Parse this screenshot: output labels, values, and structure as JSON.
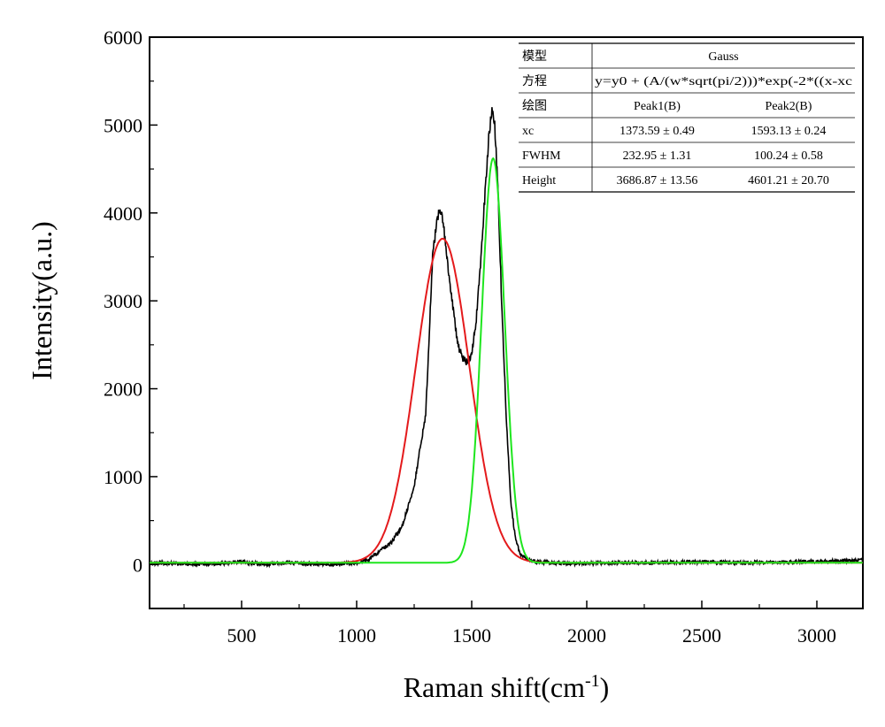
{
  "chart_data": {
    "type": "line",
    "xlabel": "Raman shift(cm",
    "xlabel_sup": "-1",
    "xlabel_end": ")",
    "ylabel": "Intensity(a.u.)",
    "xlim": [
      100,
      3200
    ],
    "ylim": [
      -500,
      6000
    ],
    "x_ticks": [
      500,
      1000,
      1500,
      2000,
      2500,
      3000
    ],
    "y_ticks": [
      0,
      1000,
      2000,
      3000,
      4000,
      5000,
      6000
    ],
    "x_tick_labels": [
      "500",
      "1000",
      "1500",
      "2000",
      "2500",
      "3000"
    ],
    "y_tick_labels": [
      "0",
      "1000",
      "2000",
      "3000",
      "4000",
      "5000",
      "6000"
    ],
    "grid": false,
    "series": [
      {
        "color": "#000000",
        "x": [
          100,
          200,
          300,
          400,
          500,
          600,
          700,
          800,
          900,
          1000,
          1050,
          1100,
          1150,
          1200,
          1250,
          1300,
          1330,
          1350,
          1365,
          1380,
          1400,
          1420,
          1440,
          1460,
          1480,
          1500,
          1520,
          1540,
          1560,
          1575,
          1590,
          1600,
          1615,
          1630,
          1650,
          1670,
          1690,
          1710,
          1740,
          1780,
          1850,
          1950,
          2100,
          2300,
          2500,
          2700,
          2900,
          3100,
          3200
        ],
        "values": [
          20,
          10,
          0,
          10,
          30,
          0,
          20,
          10,
          0,
          20,
          50,
          150,
          250,
          450,
          900,
          1700,
          3500,
          3950,
          4050,
          3800,
          3300,
          2900,
          2500,
          2350,
          2300,
          2400,
          2800,
          3500,
          4300,
          4900,
          5200,
          5000,
          4200,
          3000,
          1700,
          700,
          300,
          120,
          60,
          30,
          20,
          10,
          20,
          20,
          30,
          20,
          30,
          40,
          50
        ]
      },
      {
        "color": "#e41a1c",
        "model": "gauss",
        "y0": 20,
        "xc": 1373.59,
        "w": 232.95,
        "height": 3686.87
      },
      {
        "color": "#1ee61e",
        "model": "gauss",
        "y0": 20,
        "xc": 1593.13,
        "w": 100.24,
        "height": 4601.21
      }
    ],
    "table": {
      "rows": [
        {
          "label": "模型",
          "cols": [
            "Gauss"
          ]
        },
        {
          "label": "方程",
          "cols": [
            "y=y0 + (A/(w*sqrt(pi/2)))*exp(-2*((x-xc"
          ]
        },
        {
          "label": "绘图",
          "cols": [
            "Peak1(B)",
            "Peak2(B)"
          ]
        },
        {
          "label": "xc",
          "cols": [
            "1373.59 ± 0.49",
            "1593.13 ± 0.24"
          ]
        },
        {
          "label": "FWHM",
          "cols": [
            "232.95 ± 1.31",
            "100.24 ± 0.58"
          ]
        },
        {
          "label": "Height",
          "cols": [
            "3686.87 ± 13.56",
            "4601.21 ± 20.70"
          ]
        }
      ]
    }
  }
}
